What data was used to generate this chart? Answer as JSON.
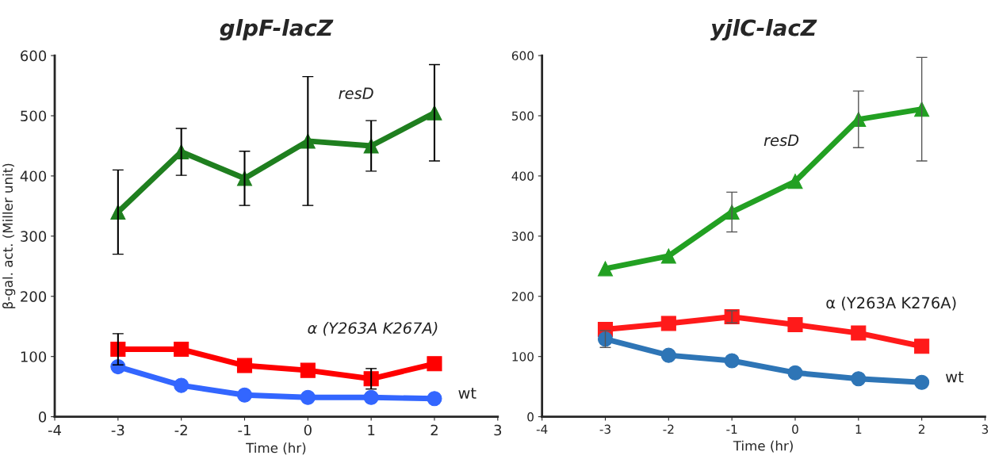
{
  "chart_data": [
    {
      "type": "line",
      "title": "glpF-lacZ",
      "xlabel": "Time (hr)",
      "ylabel": "β-gal. act. (Miller unit)",
      "x": [
        -3,
        -2,
        -1,
        0,
        1,
        2
      ],
      "xlim": [
        -4,
        3
      ],
      "xticks": [
        -4,
        -3,
        -2,
        -1,
        0,
        1,
        2,
        3
      ],
      "ylim": [
        0,
        600
      ],
      "yticks": [
        0,
        100,
        200,
        300,
        400,
        500,
        600
      ],
      "grid": false,
      "legend": false,
      "line_style": "solid",
      "series": [
        {
          "name": "resD",
          "color": "#1f7f1f",
          "marker": "triangle",
          "values": [
            340,
            440,
            396,
            458,
            450,
            505
          ],
          "errors": [
            70,
            39,
            45,
            107,
            42,
            80
          ]
        },
        {
          "name": "α (Y263A K267A)",
          "color": "#ff0000",
          "marker": "square",
          "values": [
            112,
            112,
            85,
            77,
            63,
            88
          ],
          "errors": [
            26,
            null,
            null,
            null,
            17,
            null
          ]
        },
        {
          "name": "wt",
          "color": "#3366ff",
          "marker": "circle",
          "values": [
            83,
            52,
            36,
            32,
            32,
            30
          ]
        }
      ]
    },
    {
      "type": "line",
      "title": "yjlC-lacZ",
      "xlabel": "Time (hr)",
      "x": [
        -3,
        -2,
        -1,
        0,
        1,
        2
      ],
      "xlim": [
        -4,
        3
      ],
      "xticks": [
        -4,
        -3,
        -2,
        -1,
        0,
        1,
        2,
        3
      ],
      "ylim": [
        0,
        600
      ],
      "yticks": [
        0,
        100,
        200,
        300,
        400,
        500,
        600
      ],
      "grid": false,
      "legend": false,
      "line_style": "solid",
      "series": [
        {
          "name": "resD",
          "color": "#22a022",
          "marker": "triangle",
          "values": [
            246,
            267,
            340,
            391,
            494,
            511
          ],
          "errors": [
            null,
            null,
            33,
            null,
            47,
            86
          ]
        },
        {
          "name": "α (Y263A K276A)",
          "color": "#ff1a1a",
          "marker": "square",
          "values": [
            145,
            155,
            166,
            153,
            139,
            117
          ],
          "errors": [
            null,
            null,
            10,
            null,
            null,
            null
          ]
        },
        {
          "name": "wt",
          "color": "#2e75b6",
          "marker": "circle",
          "values": [
            129,
            102,
            93,
            73,
            63,
            57
          ],
          "errors": [
            14,
            null,
            null,
            null,
            null,
            null
          ]
        }
      ]
    }
  ]
}
